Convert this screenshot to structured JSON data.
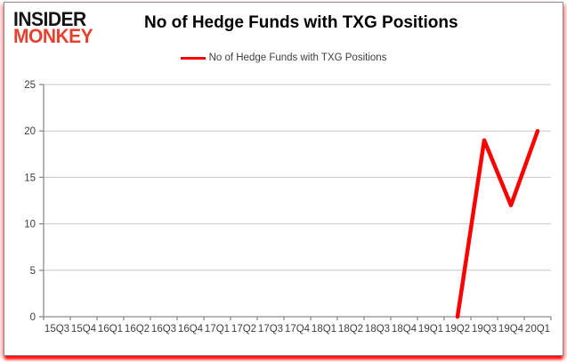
{
  "logo": {
    "line1": "INSIDER",
    "line2": "MONKEY"
  },
  "title": "No of Hedge Funds with TXG Positions",
  "legend": {
    "label": "No of Hedge Funds with TXG Positions"
  },
  "colors": {
    "line": "#ff0000",
    "logo_black": "#141414",
    "logo_red": "#e8402f",
    "gridline": "#c6c6c6",
    "axis": "#8c8c8c",
    "tick_label": "#3f3f3f",
    "title_text": "#000000"
  },
  "chart_data": {
    "type": "line",
    "title": "No of Hedge Funds with TXG Positions",
    "xlabel": "",
    "ylabel": "",
    "categories": [
      "15Q3",
      "15Q4",
      "16Q1",
      "16Q2",
      "16Q3",
      "16Q4",
      "17Q1",
      "17Q2",
      "17Q3",
      "17Q4",
      "18Q1",
      "18Q2",
      "18Q3",
      "18Q4",
      "19Q1",
      "19Q2",
      "19Q3",
      "19Q4",
      "20Q1"
    ],
    "series": [
      {
        "name": "No of Hedge Funds with TXG Positions",
        "values": [
          null,
          null,
          null,
          null,
          null,
          null,
          null,
          null,
          null,
          null,
          null,
          null,
          null,
          null,
          null,
          0,
          19,
          12,
          20
        ]
      }
    ],
    "ylim": [
      0,
      25
    ],
    "yticks": [
      0,
      5,
      10,
      15,
      20,
      25
    ],
    "grid": true,
    "legend_position": "top"
  }
}
